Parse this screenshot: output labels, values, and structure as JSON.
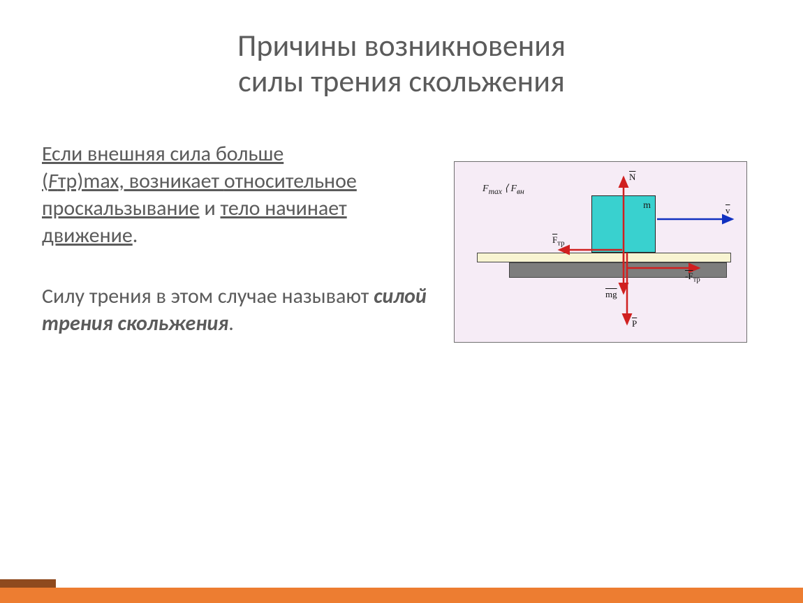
{
  "title_line1": "Причины возникновения",
  "title_line2": "силы трения скольжения",
  "para1_seg1": "Если внешняя сила больше",
  "para1_seg2": "(",
  "para1_seg3_i": "F",
  "para1_seg4": "тр)max, возникает ",
  "para1_seg5_u": "относительное проскальзывание",
  "para1_seg6": " и ",
  "para1_seg7_u": "тело начинает движение",
  "para1_seg8": ".",
  "para2_seg1": "Силу трения в этом случае называют ",
  "para2_seg2_bi": "силой трения скольжения",
  "para2_seg3": ".",
  "diagram": {
    "bg": "#f6ecf6",
    "border": "#6f6f6f",
    "block_color": "#39d1cf",
    "surface_top_color": "#f8f4d2",
    "surface_bottom_color": "#7d7d7d",
    "arrow_red": "#d02020",
    "arrow_blue": "#1030c0",
    "m_label": "m",
    "fmax_html": "F<sub>max</sub> ⟨ F<sub>вн</sub>",
    "N_label": "N",
    "v_label": "v",
    "Ftr_label": "F",
    "Ftr_sub": "тр",
    "minusFtr_label": "-F",
    "minusFtr_sub": "тр",
    "mg_label": "mg",
    "P_label": "P"
  },
  "footer_accent": "#ed7d31",
  "footer_dark": "#8f4a1e"
}
